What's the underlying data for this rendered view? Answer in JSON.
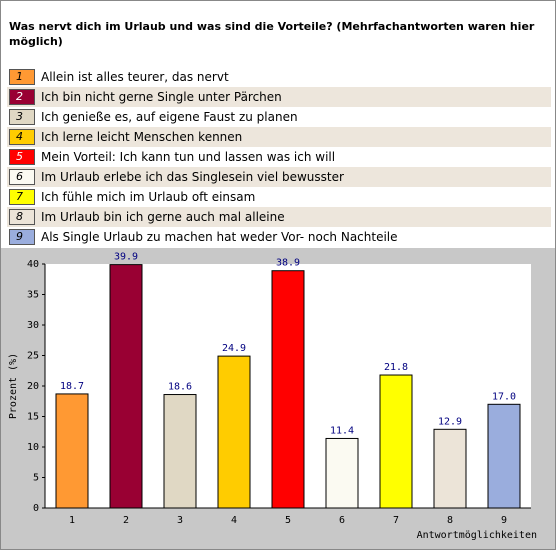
{
  "chart_data": {
    "type": "bar",
    "title": "Was nervt dich im Urlaub und was sind die Vorteile? (Mehrfachantworten waren hier möglich)",
    "categories": [
      "1",
      "2",
      "3",
      "4",
      "5",
      "6",
      "7",
      "8",
      "9"
    ],
    "descriptions": [
      "Allein ist alles teurer, das nervt",
      "Ich bin nicht gerne Single unter Pärchen",
      "Ich genieße es, auf eigene Faust zu planen",
      "Ich lerne leicht Menschen kennen",
      "Mein Vorteil: Ich kann tun und lassen was ich will",
      "Im Urlaub erlebe ich das Singlesein viel bewusster",
      "Ich fühle mich im Urlaub oft einsam",
      "Im Urlaub bin ich gerne auch mal alleine",
      "Als Single Urlaub zu machen hat weder Vor- noch Nachteile"
    ],
    "values": [
      18.7,
      39.9,
      18.6,
      24.9,
      38.9,
      11.4,
      21.8,
      12.9,
      17.0
    ],
    "value_labels": [
      "18.7",
      "39.9",
      "18.6",
      "24.9",
      "38.9",
      "11.4",
      "21.8",
      "12.9",
      "17.0"
    ],
    "colors": [
      "#ff9933",
      "#990033",
      "#e0d8c4",
      "#ffcc00",
      "#ff0000",
      "#fbfaf2",
      "#ffff00",
      "#ece4d8",
      "#9aaddd"
    ],
    "y_label": "Prozent (%)",
    "x_label": "Antwortmöglichkeiten",
    "ylim": [
      0,
      40
    ],
    "yticks": [
      0,
      5,
      10,
      15,
      20,
      25,
      30,
      35,
      40
    ],
    "grid": false
  }
}
